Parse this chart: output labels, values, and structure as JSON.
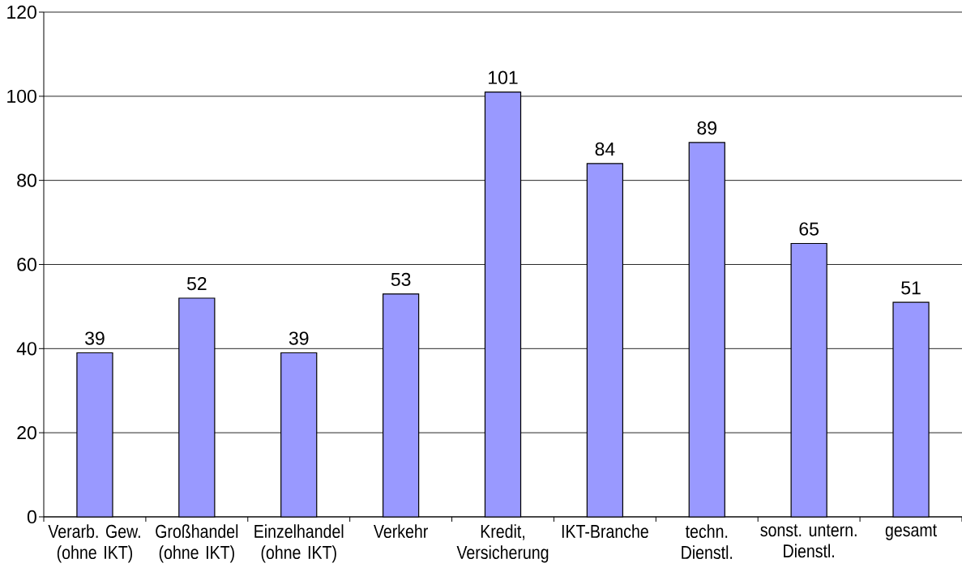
{
  "chart_data": {
    "type": "bar",
    "categories": [
      "Verarb. Gew. (ohne IKT)",
      "Großhandel (ohne IKT)",
      "Einzelhandel (ohne IKT)",
      "Verkehr",
      "Kredit, Versicherung",
      "IKT-Branche",
      "techn. Dienstl.",
      "sonst. untern. Dienstl.",
      "gesamt"
    ],
    "values": [
      39,
      52,
      39,
      53,
      101,
      84,
      89,
      65,
      51
    ],
    "color": "#9999ff",
    "ylim": [
      0,
      120
    ],
    "yticks": [
      0,
      20,
      40,
      60,
      80,
      100,
      120
    ],
    "grid": "y",
    "data_labels": true
  }
}
